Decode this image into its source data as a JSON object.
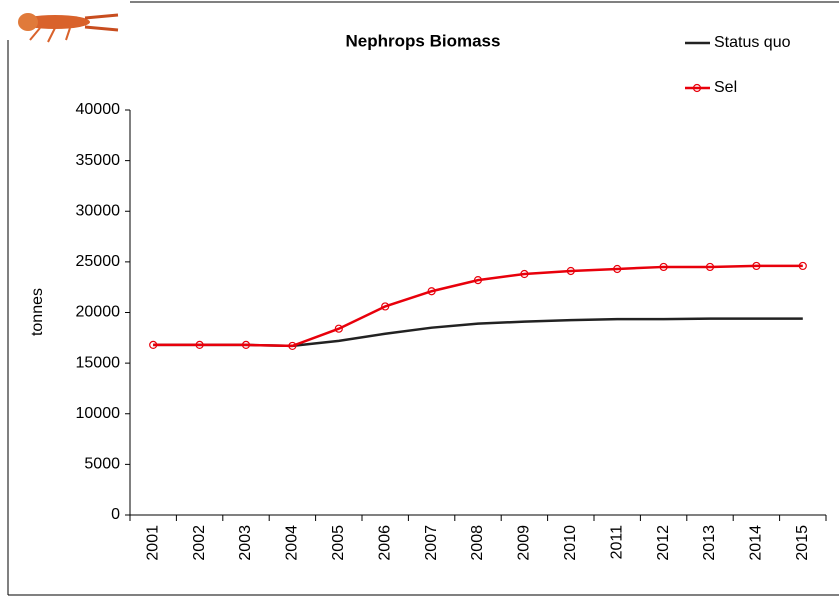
{
  "chart_data": {
    "type": "line",
    "title": "Nephrops Biomass",
    "y_label": "tonnes",
    "categories": [
      "2001",
      "2002",
      "2003",
      "2004",
      "2005",
      "2006",
      "2007",
      "2008",
      "2009",
      "2010",
      "2011",
      "2012",
      "2013",
      "2014",
      "2015"
    ],
    "series": [
      {
        "name": "Status quo",
        "color": "#222222",
        "marker": false,
        "values": [
          16800,
          16800,
          16800,
          16700,
          17200,
          17900,
          18500,
          18900,
          19100,
          19250,
          19350,
          19350,
          19400,
          19400,
          19400
        ]
      },
      {
        "name": "Sel",
        "color": "#e8000b",
        "marker": true,
        "values": [
          16800,
          16800,
          16800,
          16700,
          18400,
          20600,
          22100,
          23200,
          23800,
          24100,
          24300,
          24500,
          24500,
          24600,
          24600
        ]
      }
    ],
    "ylim": [
      0,
      40000
    ],
    "yticks": [
      0,
      5000,
      10000,
      15000,
      20000,
      25000,
      30000,
      35000,
      40000
    ],
    "grid": false
  }
}
